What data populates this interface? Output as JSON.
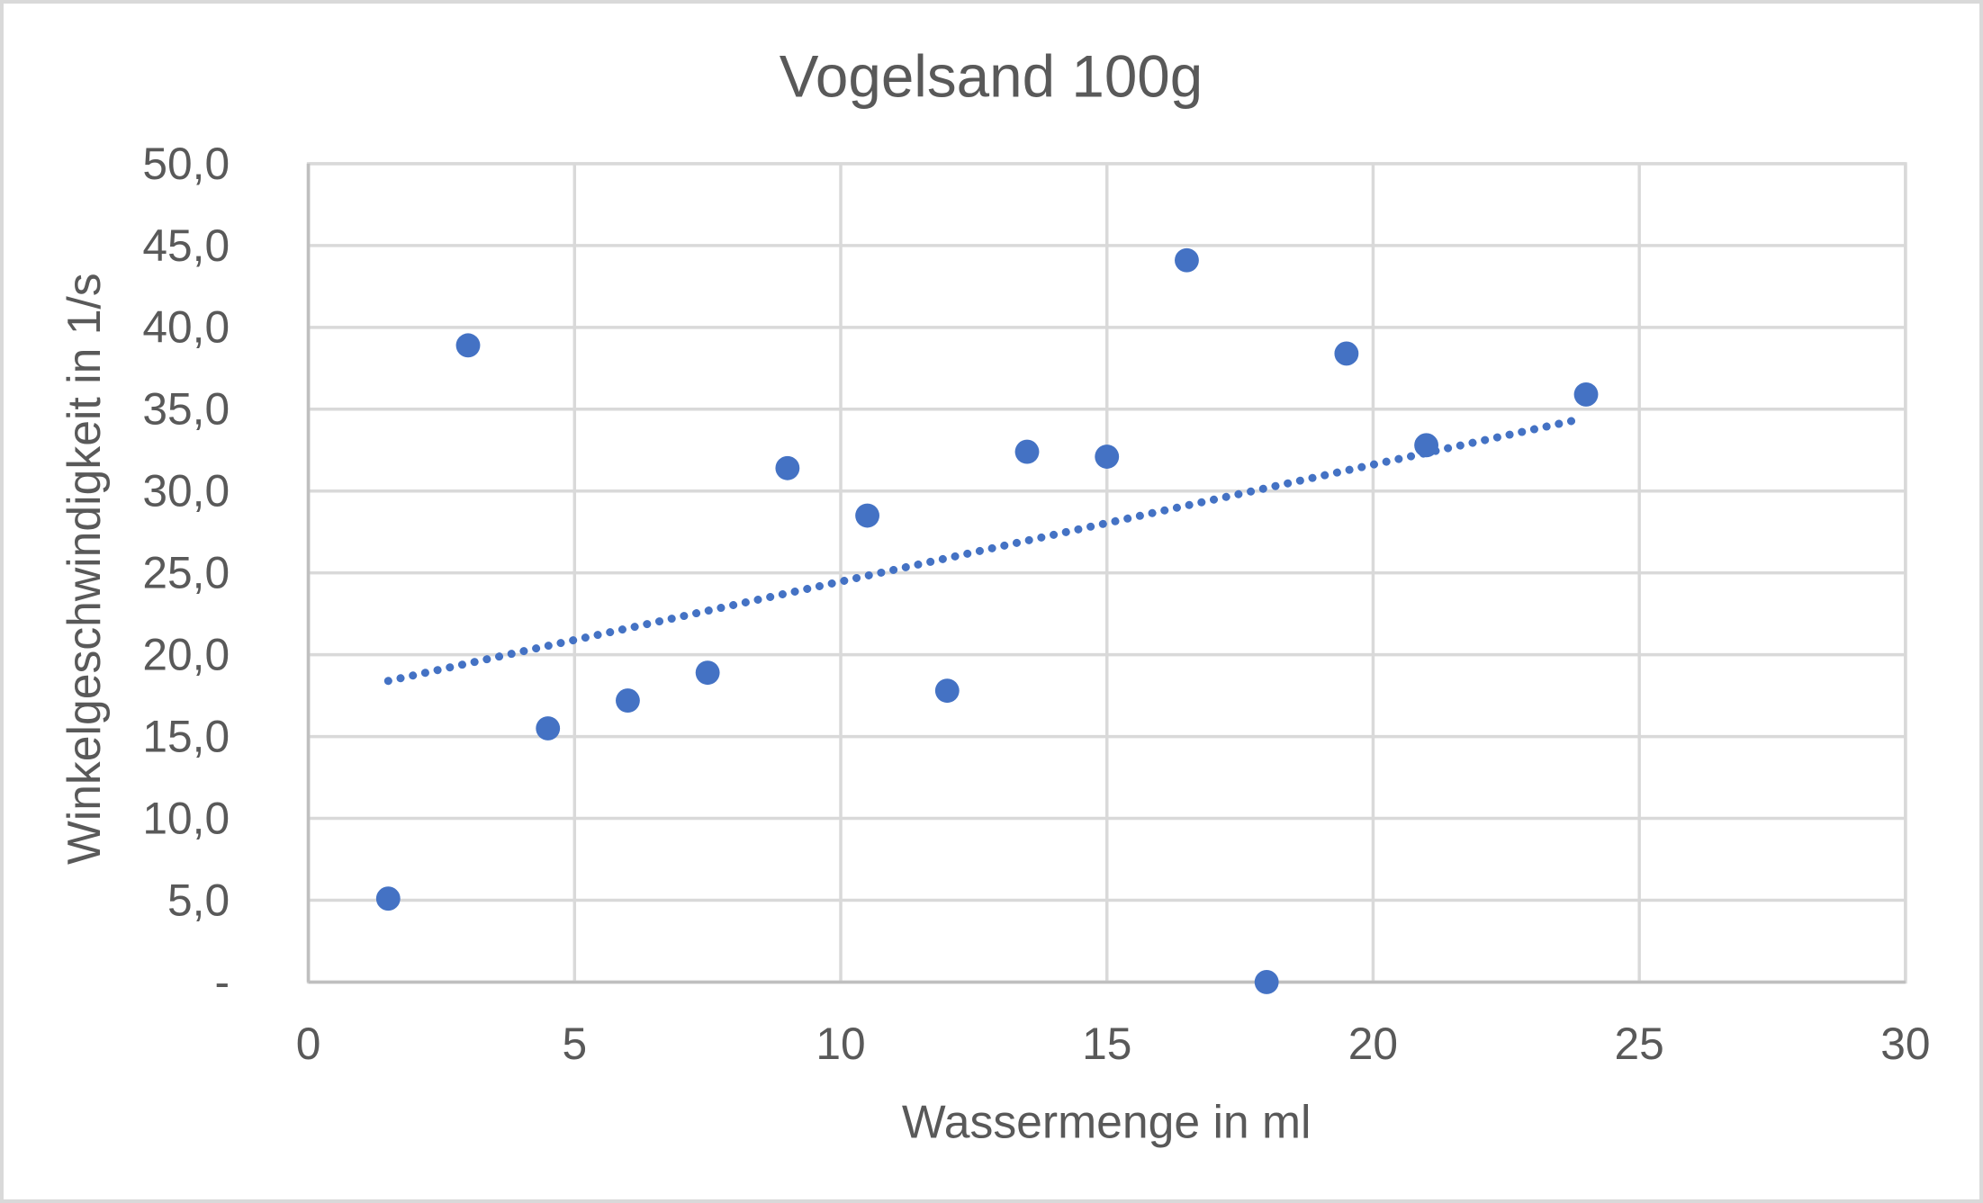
{
  "frame": {
    "background": "#ffffff",
    "border_color": "#d9d9d9"
  },
  "chart_data": {
    "type": "scatter",
    "title": "Vogelsand 100g",
    "xlabel": "Wassermenge in ml",
    "ylabel": "Winkelgeschwindigkeit in 1/s",
    "xlim": [
      0,
      30
    ],
    "ylim": [
      0,
      50
    ],
    "x_ticks": [
      0,
      5,
      10,
      15,
      20,
      25,
      30
    ],
    "x_tick_labels": [
      "0",
      "5",
      "10",
      "15",
      "20",
      "25",
      "30"
    ],
    "y_ticks": [
      0,
      5,
      10,
      15,
      20,
      25,
      30,
      35,
      40,
      45,
      50
    ],
    "y_tick_labels": [
      "-",
      "5,0",
      "10,0",
      "15,0",
      "20,0",
      "25,0",
      "30,0",
      "35,0",
      "40,0",
      "45,0",
      "50,0"
    ],
    "grid": true,
    "legend": "none",
    "series": [
      {
        "marker": "circle",
        "points": [
          [
            1.5,
            5.1
          ],
          [
            3.0,
            38.9
          ],
          [
            4.5,
            15.5
          ],
          [
            6.0,
            17.2
          ],
          [
            7.5,
            18.9
          ],
          [
            9.0,
            31.4
          ],
          [
            10.5,
            28.5
          ],
          [
            12.0,
            17.8
          ],
          [
            13.5,
            32.4
          ],
          [
            15.0,
            32.1
          ],
          [
            16.5,
            44.1
          ],
          [
            18.0,
            0.0
          ],
          [
            19.5,
            38.4
          ],
          [
            21.0,
            32.8
          ],
          [
            24.0,
            35.9
          ]
        ]
      }
    ],
    "trendline": {
      "style": "dotted",
      "x1": 1.5,
      "y1": 18.4,
      "x2": 23.9,
      "y2": 34.4
    },
    "colors": {
      "marker": "#4472c4",
      "trendline": "#4472c4",
      "gridline": "#d9d9d9",
      "axis_line": "#bfbfbf",
      "text": "#595959"
    }
  }
}
